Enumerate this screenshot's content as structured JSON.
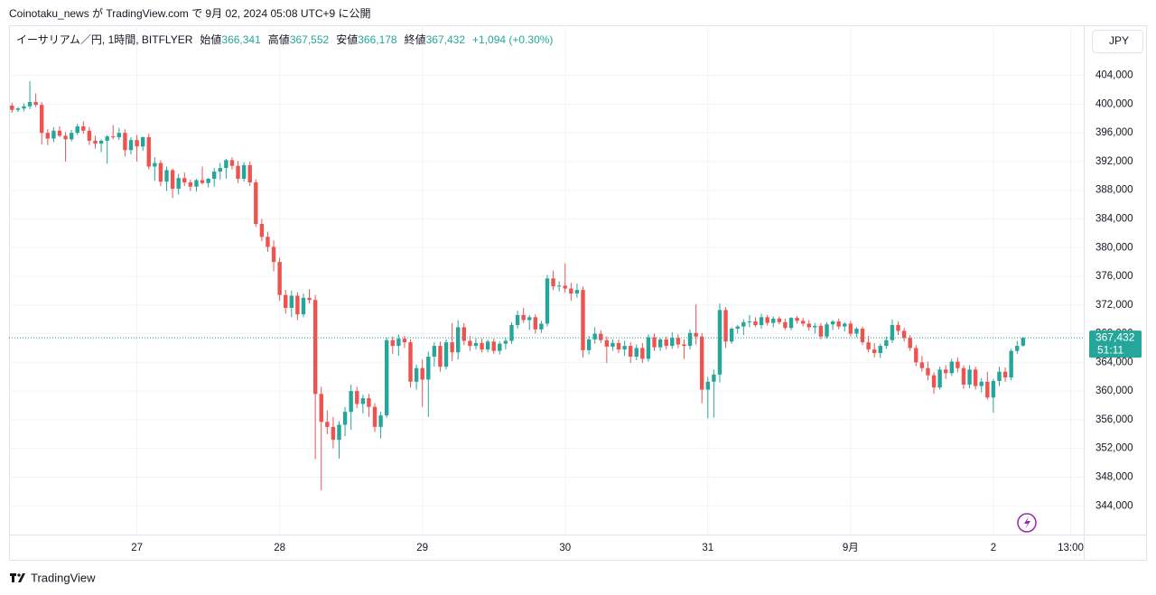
{
  "header": {
    "published": "Coinotaku_news が TradingView.com で 9月 02, 2024 05:08 UTC+9 に公開",
    "footer": "TradingView"
  },
  "chart_data": {
    "type": "candlestick",
    "title": "イーサリアム／円, 1時間, BITFLYER",
    "ohlc_header": [
      {
        "label": "始値",
        "value": "366,341"
      },
      {
        "label": "高値",
        "value": "367,552"
      },
      {
        "label": "安値",
        "value": "366,178"
      },
      {
        "label": "終値",
        "value": "367,432"
      }
    ],
    "change": "+1,094 (+0.30%)",
    "currency": "JPY",
    "last_price_label": "367,432",
    "countdown": "51:11",
    "up_color": "#26a69a",
    "down_color": "#ef5350",
    "grid": true,
    "ylim": [
      340000,
      411000
    ],
    "xlim": [
      -0.5,
      180.2
    ],
    "yticks": [
      {
        "value": 344000,
        "label": "344,000"
      },
      {
        "value": 348000,
        "label": "348,000"
      },
      {
        "value": 352000,
        "label": "352,000"
      },
      {
        "value": 356000,
        "label": "356,000"
      },
      {
        "value": 360000,
        "label": "360,000"
      },
      {
        "value": 364000,
        "label": "364,000"
      },
      {
        "value": 368000,
        "label": "368,000"
      },
      {
        "value": 372000,
        "label": "372,000"
      },
      {
        "value": 376000,
        "label": "376,000"
      },
      {
        "value": 380000,
        "label": "380,000"
      },
      {
        "value": 384000,
        "label": "384,000"
      },
      {
        "value": 388000,
        "label": "388,000"
      },
      {
        "value": 392000,
        "label": "392,000"
      },
      {
        "value": 396000,
        "label": "396,000"
      },
      {
        "value": 400000,
        "label": "400,000"
      },
      {
        "value": 404000,
        "label": "404,000"
      }
    ],
    "xticks": [
      {
        "value": 21,
        "label": "27"
      },
      {
        "value": 45,
        "label": "28"
      },
      {
        "value": 69,
        "label": "29"
      },
      {
        "value": 93,
        "label": "30"
      },
      {
        "value": 117,
        "label": "31"
      },
      {
        "value": 141,
        "label": "9月"
      },
      {
        "value": 165,
        "label": "2"
      },
      {
        "value": 178,
        "label": "13:00"
      }
    ],
    "ohlc": [
      [
        399800,
        400200,
        398800,
        399200
      ],
      [
        399200,
        399600,
        398900,
        399400
      ],
      [
        399400,
        400100,
        399000,
        399700
      ],
      [
        399700,
        403200,
        399300,
        400300
      ],
      [
        400300,
        401500,
        399600,
        399900
      ],
      [
        399900,
        400300,
        394400,
        396000
      ],
      [
        396000,
        396500,
        394300,
        395200
      ],
      [
        395200,
        396800,
        394700,
        396300
      ],
      [
        396300,
        396900,
        395400,
        395600
      ],
      [
        395600,
        396100,
        392000,
        395100
      ],
      [
        395100,
        396400,
        394800,
        396000
      ],
      [
        396000,
        397300,
        395700,
        396900
      ],
      [
        396900,
        397600,
        395900,
        396300
      ],
      [
        396300,
        396800,
        394300,
        394900
      ],
      [
        394900,
        395600,
        393800,
        394500
      ],
      [
        394500,
        395100,
        393300,
        394900
      ],
      [
        394900,
        395700,
        391700,
        395500
      ],
      [
        395500,
        397100,
        395100,
        395400
      ],
      [
        395400,
        396700,
        395000,
        396000
      ],
      [
        396000,
        396500,
        392700,
        393600
      ],
      [
        393600,
        395400,
        393000,
        395000
      ],
      [
        395000,
        395700,
        392000,
        394100
      ],
      [
        394100,
        395500,
        393500,
        395400
      ],
      [
        395400,
        395900,
        390900,
        391300
      ],
      [
        391300,
        392600,
        389300,
        391800
      ],
      [
        391800,
        392200,
        388600,
        389200
      ],
      [
        389200,
        391300,
        387900,
        390800
      ],
      [
        390800,
        391000,
        386900,
        388200
      ],
      [
        388200,
        390300,
        387400,
        389700
      ],
      [
        389700,
        390500,
        388600,
        389100
      ],
      [
        389100,
        389500,
        387900,
        388500
      ],
      [
        388500,
        389600,
        387800,
        389400
      ],
      [
        389400,
        391300,
        388800,
        389000
      ],
      [
        389000,
        389700,
        388400,
        389600
      ],
      [
        389600,
        391100,
        388500,
        390600
      ],
      [
        390600,
        391800,
        389500,
        391100
      ],
      [
        391100,
        392400,
        389600,
        392200
      ],
      [
        392200,
        392600,
        390900,
        391400
      ],
      [
        391400,
        392100,
        389000,
        389600
      ],
      [
        389600,
        391900,
        389200,
        391500
      ],
      [
        391500,
        392000,
        388600,
        389100
      ],
      [
        389100,
        389500,
        382900,
        383300
      ],
      [
        383300,
        384000,
        380900,
        381500
      ],
      [
        381500,
        382200,
        379400,
        380100
      ],
      [
        380100,
        381000,
        376700,
        378000
      ],
      [
        378000,
        378600,
        372600,
        373400
      ],
      [
        373400,
        374100,
        370800,
        371600
      ],
      [
        371600,
        374000,
        370300,
        373300
      ],
      [
        373300,
        373800,
        369900,
        370700
      ],
      [
        370700,
        373600,
        370300,
        373000
      ],
      [
        373000,
        374200,
        372200,
        372700
      ],
      [
        372700,
        373400,
        350500,
        359600
      ],
      [
        359600,
        360600,
        346200,
        355700
      ],
      [
        355700,
        357300,
        354000,
        355000
      ],
      [
        355000,
        356400,
        352000,
        353200
      ],
      [
        353200,
        355800,
        350600,
        355300
      ],
      [
        355300,
        357800,
        353700,
        357100
      ],
      [
        357100,
        360900,
        354600,
        360000
      ],
      [
        360000,
        360600,
        357600,
        358200
      ],
      [
        358200,
        359500,
        356900,
        359000
      ],
      [
        359000,
        359600,
        356400,
        357800
      ],
      [
        357800,
        358300,
        354300,
        355000
      ],
      [
        355000,
        357100,
        353400,
        356600
      ],
      [
        356600,
        367500,
        356300,
        367100
      ],
      [
        367100,
        367600,
        365200,
        366300
      ],
      [
        366300,
        367900,
        364900,
        367300
      ],
      [
        367300,
        367700,
        366000,
        366800
      ],
      [
        366800,
        367200,
        360500,
        361300
      ],
      [
        361300,
        363700,
        360200,
        363200
      ],
      [
        363200,
        364400,
        357800,
        361600
      ],
      [
        361600,
        365500,
        356400,
        364800
      ],
      [
        364800,
        366800,
        363400,
        366300
      ],
      [
        366300,
        366900,
        362700,
        363400
      ],
      [
        363400,
        367200,
        363000,
        366800
      ],
      [
        366800,
        369500,
        364200,
        365400
      ],
      [
        365400,
        369900,
        364400,
        368900
      ],
      [
        368900,
        369500,
        366400,
        367000
      ],
      [
        367000,
        367700,
        365600,
        366300
      ],
      [
        366300,
        367400,
        365800,
        366700
      ],
      [
        366700,
        367300,
        365400,
        365800
      ],
      [
        365800,
        367200,
        365400,
        366900
      ],
      [
        366900,
        367300,
        365200,
        365600
      ],
      [
        365600,
        366900,
        365100,
        366600
      ],
      [
        366600,
        367400,
        365800,
        367000
      ],
      [
        367000,
        369600,
        366600,
        369200
      ],
      [
        369200,
        371200,
        368700,
        370600
      ],
      [
        370600,
        371600,
        369500,
        369900
      ],
      [
        369900,
        370600,
        368500,
        370300
      ],
      [
        370300,
        370700,
        368000,
        368600
      ],
      [
        368600,
        369800,
        368100,
        369400
      ],
      [
        369400,
        376200,
        369000,
        375700
      ],
      [
        375700,
        376800,
        374100,
        374600
      ],
      [
        374600,
        375300,
        373900,
        374700
      ],
      [
        374700,
        377800,
        373700,
        374300
      ],
      [
        374300,
        375100,
        372600,
        373600
      ],
      [
        373600,
        375000,
        373000,
        374100
      ],
      [
        374100,
        374600,
        364700,
        365700
      ],
      [
        365700,
        367700,
        365100,
        367200
      ],
      [
        367200,
        368900,
        366600,
        368000
      ],
      [
        368000,
        368500,
        366700,
        367100
      ],
      [
        367100,
        367600,
        363900,
        366200
      ],
      [
        366200,
        367200,
        365600,
        366700
      ],
      [
        366700,
        367200,
        365300,
        365800
      ],
      [
        365800,
        367000,
        364900,
        366300
      ],
      [
        366300,
        366800,
        363900,
        364800
      ],
      [
        364800,
        366500,
        364300,
        366000
      ],
      [
        366000,
        366700,
        363900,
        364500
      ],
      [
        364500,
        367900,
        364100,
        367500
      ],
      [
        367500,
        368000,
        365600,
        366100
      ],
      [
        366100,
        367400,
        365600,
        367200
      ],
      [
        367200,
        367600,
        365800,
        366300
      ],
      [
        366300,
        368200,
        365900,
        367400
      ],
      [
        367400,
        367900,
        366000,
        366500
      ],
      [
        366500,
        367200,
        364500,
        366300
      ],
      [
        366300,
        368600,
        365800,
        368100
      ],
      [
        368100,
        372100,
        366500,
        367600
      ],
      [
        367600,
        368100,
        358300,
        360200
      ],
      [
        360200,
        362000,
        356200,
        361300
      ],
      [
        361300,
        363000,
        356300,
        362300
      ],
      [
        362300,
        372200,
        361200,
        371300
      ],
      [
        371300,
        371700,
        366000,
        366900
      ],
      [
        366900,
        368900,
        366600,
        368700
      ],
      [
        368700,
        369200,
        368000,
        369000
      ],
      [
        369000,
        370000,
        367800,
        369600
      ],
      [
        369600,
        370600,
        368900,
        369700
      ],
      [
        369700,
        370300,
        368900,
        369200
      ],
      [
        369200,
        370800,
        368700,
        370300
      ],
      [
        370300,
        370600,
        369100,
        369500
      ],
      [
        369500,
        370400,
        368900,
        370100
      ],
      [
        370100,
        370400,
        369300,
        369600
      ],
      [
        369600,
        370100,
        368500,
        368800
      ],
      [
        368800,
        370300,
        368500,
        370200
      ],
      [
        370200,
        370500,
        369400,
        369800
      ],
      [
        369800,
        370200,
        369000,
        369400
      ],
      [
        369400,
        369900,
        368400,
        368900
      ],
      [
        368900,
        369500,
        368000,
        369100
      ],
      [
        369100,
        369500,
        367200,
        367600
      ],
      [
        367600,
        369600,
        367300,
        369300
      ],
      [
        369300,
        369900,
        368500,
        369700
      ],
      [
        369700,
        370100,
        368600,
        369000
      ],
      [
        369000,
        369600,
        368300,
        369400
      ],
      [
        369400,
        369800,
        367600,
        368000
      ],
      [
        368000,
        368900,
        367500,
        368700
      ],
      [
        368700,
        369000,
        366400,
        366800
      ],
      [
        366800,
        367700,
        365400,
        365800
      ],
      [
        365800,
        366700,
        364700,
        365300
      ],
      [
        365300,
        366600,
        364600,
        366300
      ],
      [
        366300,
        367600,
        365900,
        367100
      ],
      [
        367100,
        370000,
        366700,
        369200
      ],
      [
        369200,
        369700,
        367800,
        368400
      ],
      [
        368400,
        368800,
        366900,
        367400
      ],
      [
        367400,
        367800,
        365600,
        366000
      ],
      [
        366000,
        366400,
        363500,
        364000
      ],
      [
        364000,
        364900,
        362700,
        363200
      ],
      [
        363200,
        364100,
        361500,
        362200
      ],
      [
        362200,
        362600,
        359600,
        360500
      ],
      [
        360500,
        363400,
        360200,
        363000
      ],
      [
        363000,
        363600,
        361700,
        362500
      ],
      [
        362500,
        364500,
        362100,
        364100
      ],
      [
        364100,
        364700,
        362600,
        363200
      ],
      [
        363200,
        363600,
        360300,
        360900
      ],
      [
        360900,
        363600,
        360400,
        363000
      ],
      [
        363000,
        363400,
        360200,
        360700
      ],
      [
        360700,
        361800,
        359800,
        361300
      ],
      [
        361300,
        362700,
        358800,
        359100
      ],
      [
        359100,
        361700,
        357000,
        361400
      ],
      [
        361400,
        363400,
        360700,
        362700
      ],
      [
        362700,
        363300,
        361300,
        361900
      ],
      [
        361900,
        365900,
        361500,
        365600
      ],
      [
        365600,
        367000,
        365200,
        366300
      ],
      [
        366341,
        367552,
        366178,
        367432
      ]
    ]
  }
}
